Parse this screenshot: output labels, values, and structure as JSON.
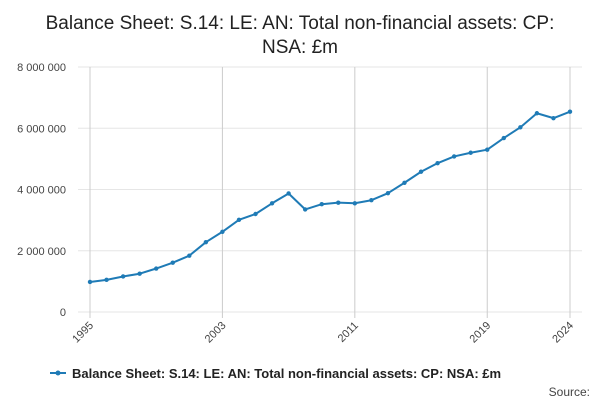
{
  "chart_data": {
    "type": "line",
    "title_lines": [
      "Balance Sheet: S.14: LE: AN: Total non-financial assets: CP:",
      "NSA: £m"
    ],
    "xlabel": "",
    "ylabel": "",
    "x": [
      1995,
      1996,
      1997,
      1998,
      1999,
      2000,
      2001,
      2002,
      2003,
      2004,
      2005,
      2006,
      2007,
      2008,
      2009,
      2010,
      2011,
      2012,
      2013,
      2014,
      2015,
      2016,
      2017,
      2018,
      2019,
      2020,
      2021,
      2022,
      2023,
      2024
    ],
    "x_tick_labels": [
      "1995",
      "2003",
      "2011",
      "2019",
      "2024"
    ],
    "x_ticks": [
      1995,
      2003,
      2011,
      2019,
      2024
    ],
    "ylim": [
      0,
      8000000
    ],
    "y_ticks": [
      0,
      2000000,
      4000000,
      6000000,
      8000000
    ],
    "y_tick_labels": [
      "0",
      "2 000 000",
      "4 000 000",
      "6 000 000",
      "8 000 000"
    ],
    "grid": true,
    "legend_position": "bottom",
    "series": [
      {
        "name": "Balance Sheet: S.14: LE: AN: Total non-financial assets: CP: NSA: £m",
        "color": "#1f7bb6",
        "values": [
          980000,
          1050000,
          1160000,
          1250000,
          1420000,
          1610000,
          1840000,
          2280000,
          2620000,
          3010000,
          3200000,
          3550000,
          3870000,
          3350000,
          3520000,
          3570000,
          3550000,
          3650000,
          3880000,
          4220000,
          4580000,
          4860000,
          5080000,
          5200000,
          5300000,
          5680000,
          6030000,
          6490000,
          6330000,
          6540000
        ]
      }
    ],
    "source_label": "Source:"
  }
}
